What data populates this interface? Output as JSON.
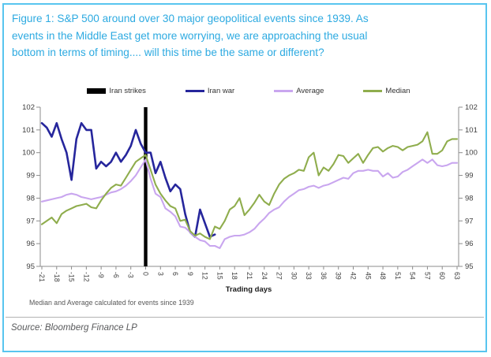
{
  "theme": {
    "accent_blue": "#2daae1",
    "frame_border": "#58c5ef",
    "axis_color": "#8c8c8c",
    "tick_label_color": "#404040"
  },
  "header": {
    "title": "Figure 1: S&P 500 around over 30 major geopolitical events since 1939. As events in the Middle East get more worrying, we are approaching the usual bottom in terms of timing.... will this time be the same or different?",
    "title_lines": [
      "Figure 1: S&P 500 around over 30 major geopolitical events since 1939. As",
      "events in the Middle East get more worrying, we are approaching the usual",
      "bottom in terms of timing.... will this time be the same or different?"
    ]
  },
  "chart": {
    "legend": [
      {
        "label": "Iran strikes",
        "color": "#000000",
        "type": "bar"
      },
      {
        "label": "Iran war",
        "color": "#26269c",
        "type": "line"
      },
      {
        "label": "Average",
        "color": "#c9a6ef",
        "type": "line"
      },
      {
        "label": "Median",
        "color": "#8fad4d",
        "type": "line"
      }
    ],
    "xlabel": "Trading days",
    "footnote": "Median and Average calculated for events since 1939"
  },
  "chart_data": {
    "type": "line",
    "title": "S&P 500 around over 30 major geopolitical events since 1939",
    "xlabel": "Trading days",
    "ylabel": "",
    "x_range": [
      -21,
      63
    ],
    "ylim": [
      95,
      102
    ],
    "y_ticks": [
      95,
      96,
      97,
      98,
      99,
      100,
      101,
      102
    ],
    "x_ticks": [
      -21,
      -18,
      -15,
      -12,
      -9,
      -6,
      -3,
      0,
      3,
      6,
      9,
      12,
      15,
      18,
      21,
      24,
      27,
      30,
      33,
      36,
      39,
      42,
      45,
      48,
      51,
      54,
      57,
      60,
      63
    ],
    "grid": false,
    "legend_position": "top",
    "event_marker": {
      "label": "Iran strikes",
      "x": 0,
      "color": "#000000"
    },
    "series": [
      {
        "name": "Iran war",
        "color": "#26269c",
        "width": 2.6,
        "x_start": -21,
        "values": [
          101.3,
          101.1,
          100.7,
          101.3,
          100.6,
          100.0,
          98.8,
          100.6,
          101.3,
          101.0,
          101.0,
          99.3,
          99.6,
          99.4,
          99.6,
          100.0,
          99.6,
          99.9,
          100.3,
          101.0,
          100.4,
          100.0,
          100.0,
          99.1,
          99.6,
          98.9,
          98.3,
          98.6,
          98.4,
          97.3,
          96.5,
          96.3,
          97.5,
          96.9,
          96.3,
          96.4
        ]
      },
      {
        "name": "Average",
        "color": "#c9a6ef",
        "width": 2.1,
        "x_start": -21,
        "values": [
          97.85,
          97.9,
          97.95,
          98.0,
          98.05,
          98.15,
          98.2,
          98.15,
          98.05,
          98.0,
          97.95,
          98.0,
          98.05,
          98.15,
          98.25,
          98.3,
          98.4,
          98.55,
          98.75,
          99.0,
          99.35,
          99.7,
          98.85,
          98.2,
          98.05,
          97.55,
          97.4,
          97.2,
          96.75,
          96.7,
          96.5,
          96.3,
          96.15,
          96.1,
          95.9,
          95.9,
          95.8,
          96.2,
          96.3,
          96.35,
          96.35,
          96.4,
          96.5,
          96.65,
          96.9,
          97.1,
          97.35,
          97.5,
          97.6,
          97.85,
          98.05,
          98.2,
          98.35,
          98.4,
          98.5,
          98.55,
          98.45,
          98.55,
          98.6,
          98.7,
          98.8,
          98.9,
          98.85,
          99.1,
          99.2,
          99.2,
          99.25,
          99.2,
          99.2,
          98.95,
          99.1,
          98.9,
          98.95,
          99.15,
          99.25,
          99.4,
          99.55,
          99.7,
          99.55,
          99.7,
          99.45,
          99.4,
          99.45,
          99.55,
          99.55
        ]
      },
      {
        "name": "Median",
        "color": "#8fad4d",
        "width": 2.1,
        "x_start": -21,
        "values": [
          96.85,
          97.0,
          97.15,
          96.9,
          97.3,
          97.45,
          97.55,
          97.65,
          97.7,
          97.75,
          97.6,
          97.55,
          97.9,
          98.2,
          98.45,
          98.6,
          98.55,
          98.9,
          99.25,
          99.6,
          99.75,
          99.9,
          99.25,
          98.6,
          98.2,
          97.9,
          97.65,
          97.55,
          97.0,
          97.05,
          96.55,
          96.35,
          96.45,
          96.3,
          96.2,
          96.75,
          96.65,
          97.0,
          97.5,
          97.65,
          98.0,
          97.25,
          97.5,
          97.8,
          98.15,
          97.85,
          97.7,
          98.2,
          98.6,
          98.85,
          99.0,
          99.1,
          99.25,
          99.2,
          99.8,
          100.0,
          99.0,
          99.35,
          99.2,
          99.5,
          99.9,
          99.85,
          99.55,
          99.75,
          99.95,
          99.55,
          99.9,
          100.2,
          100.25,
          100.05,
          100.2,
          100.3,
          100.25,
          100.1,
          100.25,
          100.3,
          100.35,
          100.5,
          100.9,
          99.95,
          99.95,
          100.1,
          100.5,
          100.6,
          100.6
        ]
      }
    ]
  },
  "source": {
    "text": "Source: Bloomberg Finance LP"
  }
}
